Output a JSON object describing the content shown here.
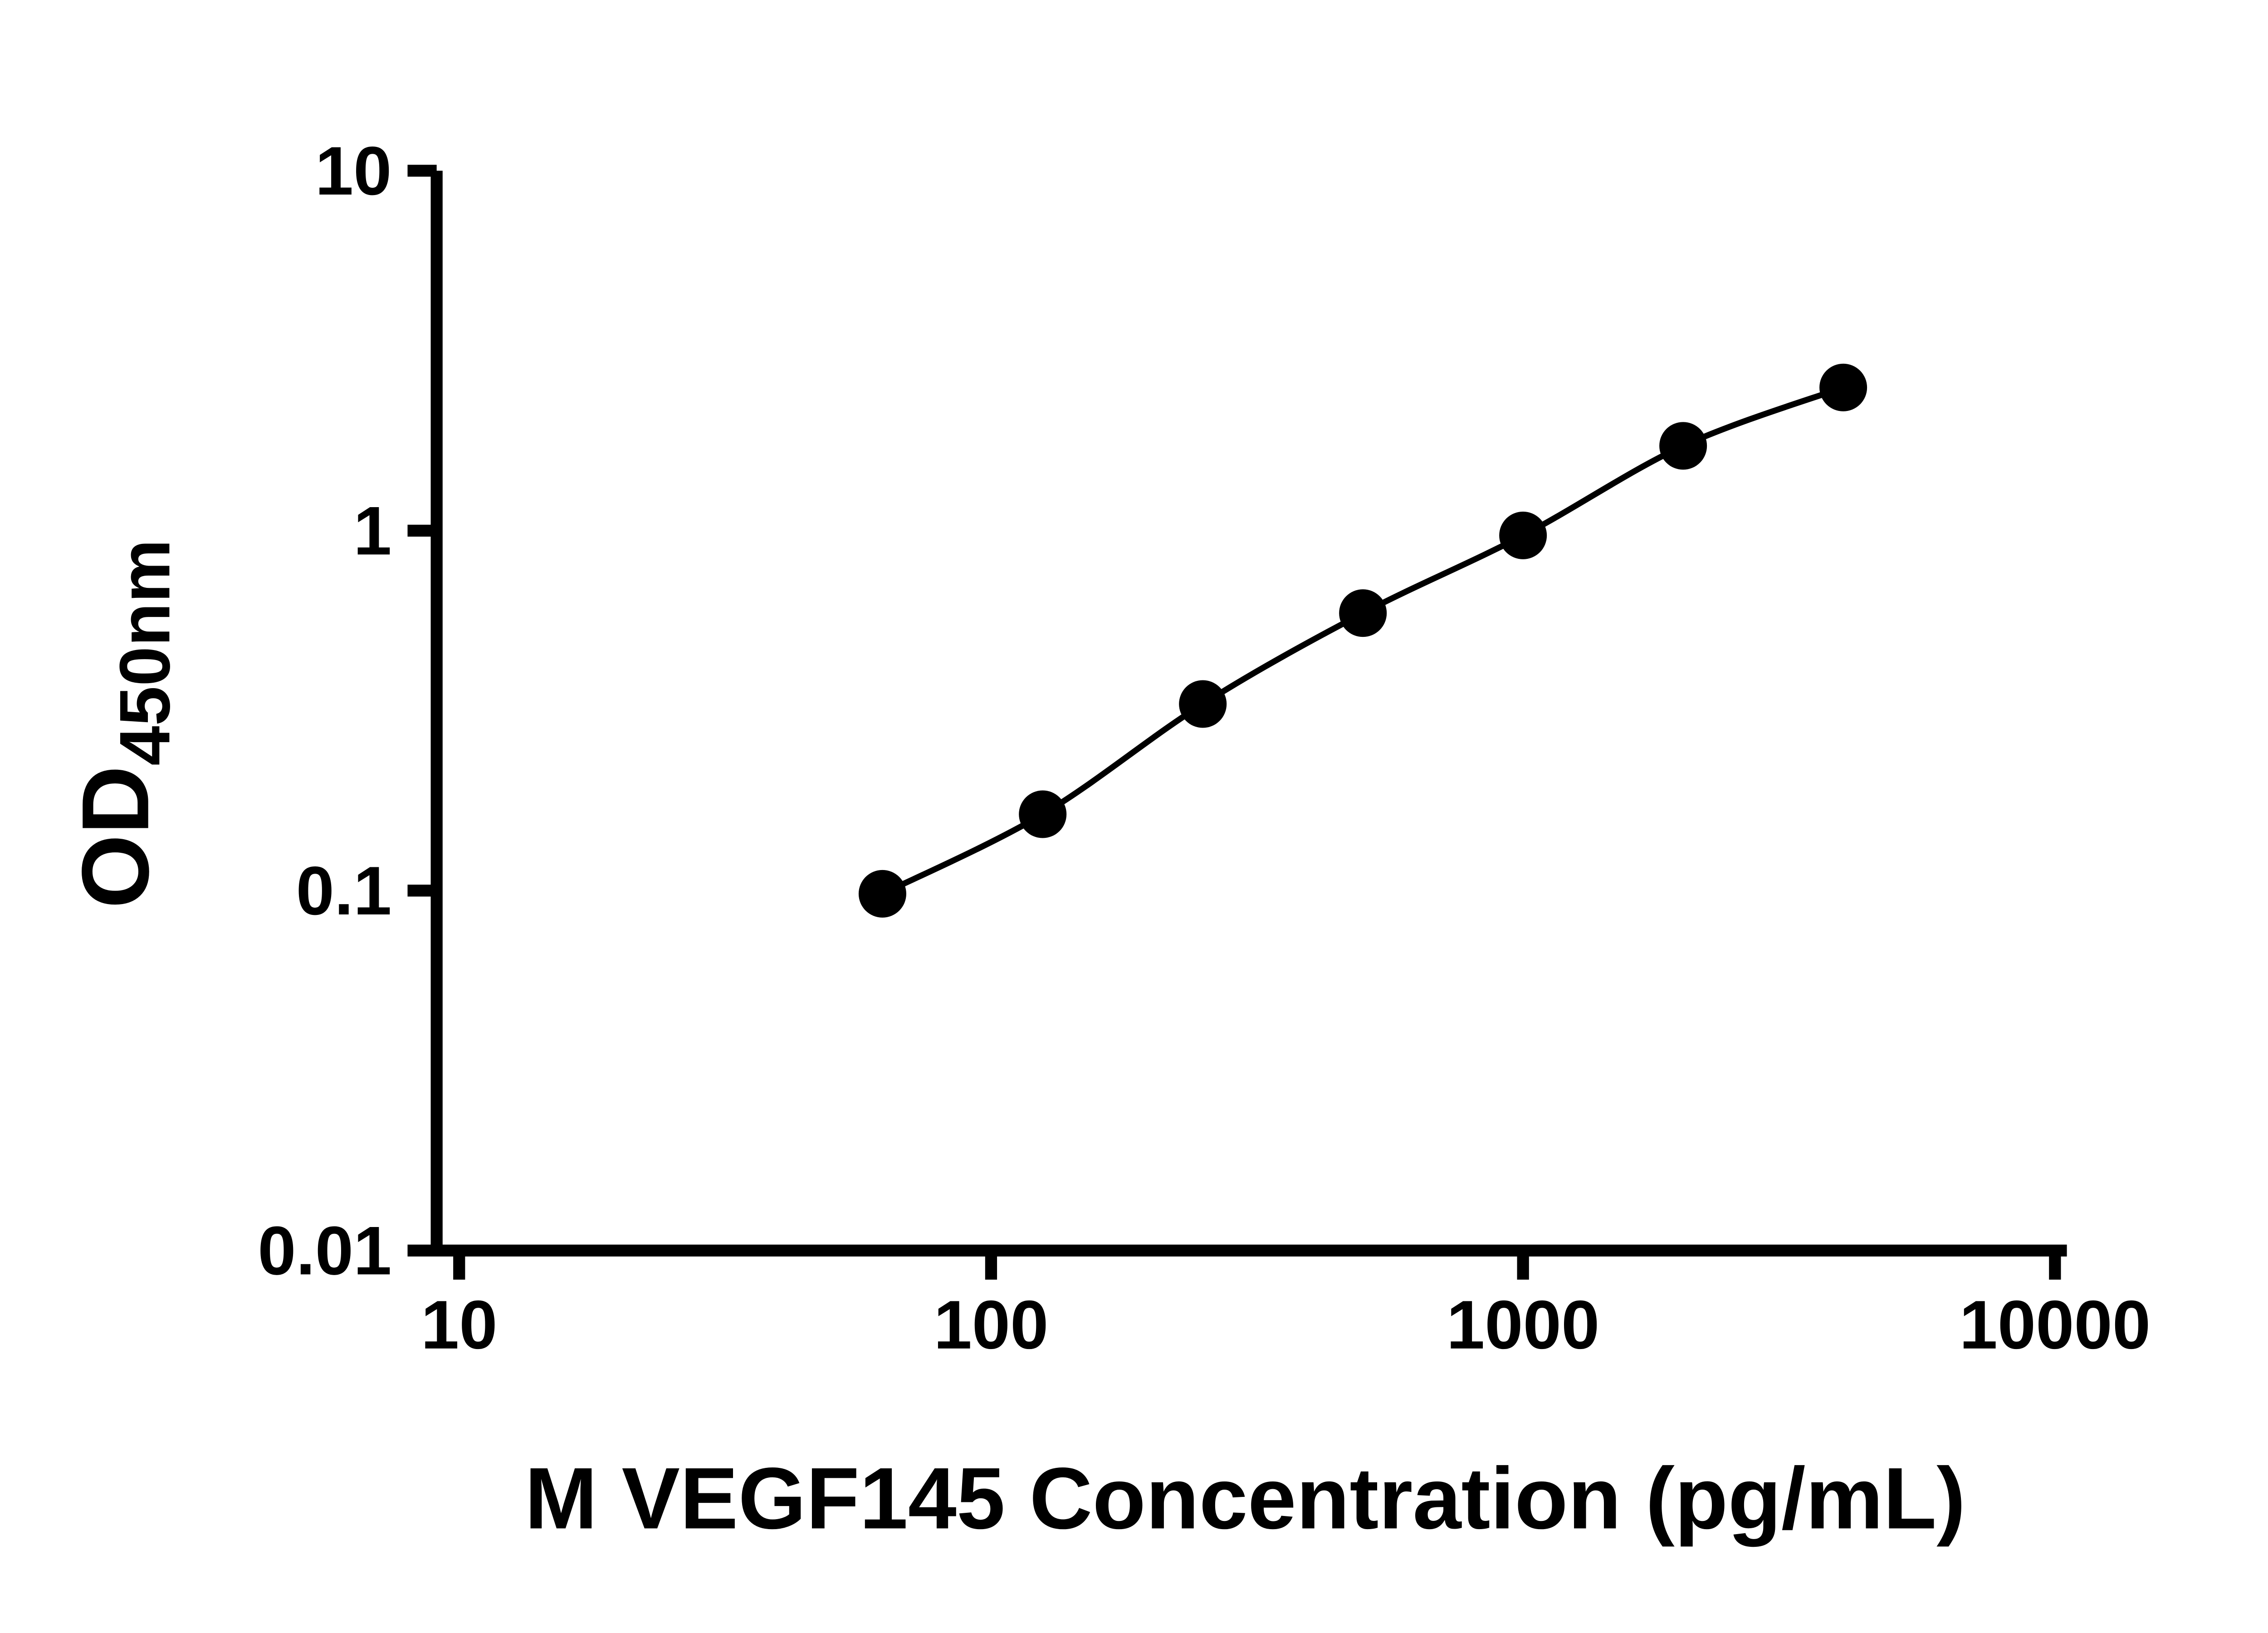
{
  "figure": {
    "background_color": "#ffffff",
    "foreground_color": "#000000"
  },
  "chart_data": {
    "type": "scatter",
    "xlabel": "M VEGF145 Concentration (pg/mL)",
    "ylabel_main": "OD",
    "ylabel_sub": "450nm",
    "x_scale": "log10",
    "y_scale": "log10",
    "xlim": [
      10,
      10000
    ],
    "ylim": [
      0.01,
      10
    ],
    "x_ticks": [
      10,
      100,
      1000,
      10000
    ],
    "x_tick_labels": [
      "10",
      "100",
      "1000",
      "10000"
    ],
    "y_ticks": [
      0.01,
      0.1,
      1,
      10
    ],
    "y_tick_labels": [
      "0.01",
      "0.1",
      "1",
      "10"
    ],
    "grid": false,
    "legend": false,
    "series": [
      {
        "x": [
          62.5,
          125,
          250,
          500,
          1000,
          2000,
          4000
        ],
        "y": [
          0.098,
          0.163,
          0.33,
          0.59,
          0.97,
          1.72,
          2.5
        ],
        "marker": "filled-circle",
        "line": "smooth",
        "color": "#000000"
      }
    ]
  }
}
